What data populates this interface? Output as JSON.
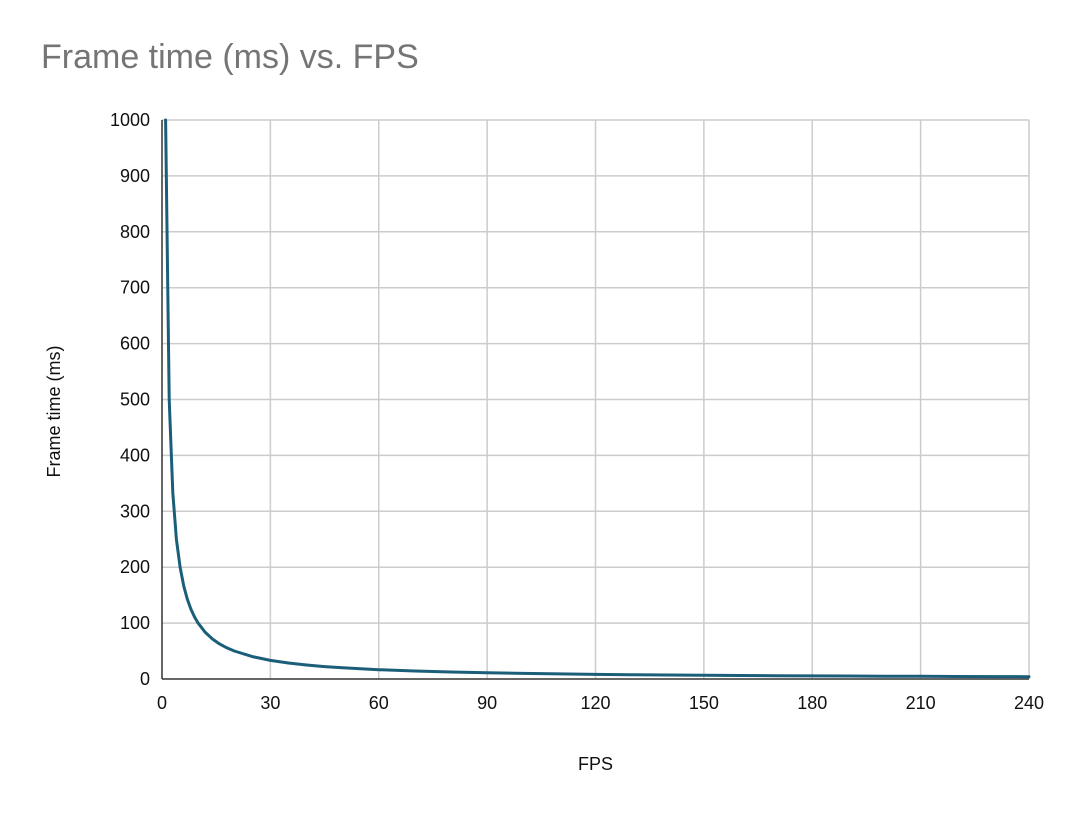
{
  "chart_data": {
    "type": "line",
    "title": "Frame time (ms) vs. FPS",
    "xlabel": "FPS",
    "ylabel": "Frame time (ms)",
    "xlim": [
      0,
      240
    ],
    "ylim": [
      0,
      1000
    ],
    "xticks": [
      0,
      30,
      60,
      90,
      120,
      150,
      180,
      210,
      240
    ],
    "yticks": [
      0,
      100,
      200,
      300,
      400,
      500,
      600,
      700,
      800,
      900,
      1000
    ],
    "grid": true,
    "legend": "none",
    "series": [
      {
        "color": "#1b5e7a",
        "x": [
          1,
          2,
          3,
          4,
          5,
          6,
          7,
          8,
          9,
          10,
          12,
          14,
          16,
          18,
          20,
          25,
          30,
          35,
          40,
          45,
          50,
          60,
          70,
          80,
          90,
          100,
          110,
          120,
          130,
          140,
          150,
          160,
          170,
          180,
          190,
          200,
          210,
          220,
          230,
          240
        ],
        "y": [
          1000,
          500,
          333.3,
          250,
          200,
          166.7,
          142.9,
          125,
          111.1,
          100,
          83.3,
          71.4,
          62.5,
          55.6,
          50,
          40,
          33.3,
          28.6,
          25,
          22.2,
          20,
          16.7,
          14.3,
          12.5,
          11.1,
          10,
          9.1,
          8.3,
          7.7,
          7.1,
          6.7,
          6.3,
          5.9,
          5.6,
          5.3,
          5,
          4.8,
          4.5,
          4.3,
          4.2
        ]
      }
    ]
  }
}
